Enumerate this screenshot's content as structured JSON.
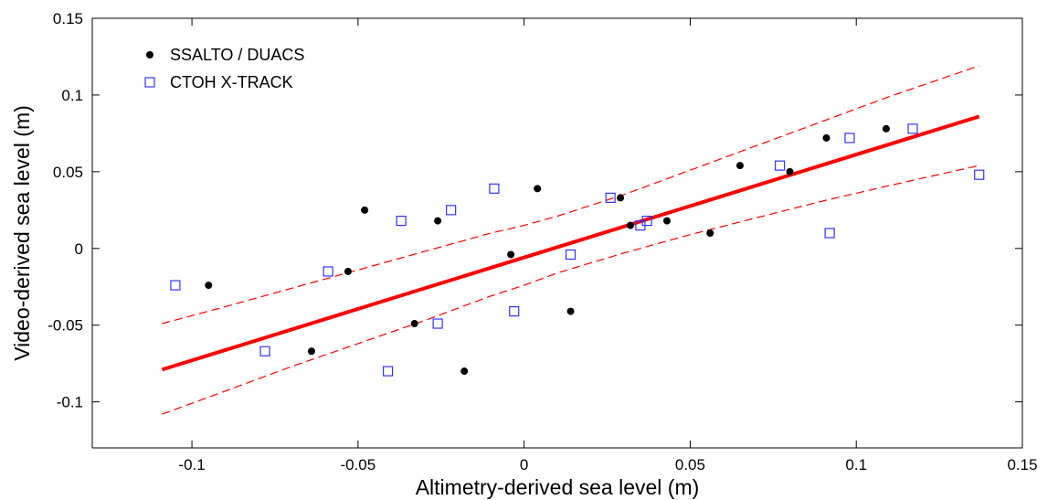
{
  "chart_data": {
    "type": "scatter",
    "title": "",
    "xlabel": "Altimetry-derived sea level (m)",
    "ylabel": "Video-derived sea level (m)",
    "xlim": [
      -0.13,
      0.15
    ],
    "ylim": [
      -0.13,
      0.15
    ],
    "xticks": [
      -0.1,
      -0.05,
      0,
      0.05,
      0.1,
      0.15
    ],
    "yticks": [
      -0.1,
      -0.05,
      0,
      0.05,
      0.1,
      0.15
    ],
    "xtick_labels": [
      "-0.1",
      "-0.05",
      "0",
      "0.05",
      "0.1",
      "0.15"
    ],
    "ytick_labels": [
      "-0.1",
      "-0.05",
      "0",
      "0.05",
      "0.1",
      "0.15"
    ],
    "grid": false,
    "legend_position": "top-left",
    "series": [
      {
        "name": "SSALTO / DUACS",
        "marker": "filled-circle",
        "color": "#000000",
        "x": [
          -0.095,
          -0.064,
          -0.053,
          -0.048,
          -0.033,
          -0.026,
          -0.018,
          -0.004,
          0.004,
          0.014,
          0.029,
          0.032,
          0.043,
          0.056,
          0.065,
          0.08,
          0.091,
          0.109
        ],
        "y": [
          -0.024,
          -0.067,
          -0.015,
          0.025,
          -0.049,
          0.018,
          -0.08,
          -0.004,
          0.039,
          -0.041,
          0.033,
          0.015,
          0.018,
          0.01,
          0.054,
          0.05,
          0.072,
          0.078
        ]
      },
      {
        "name": "CTOH X-TRACK",
        "marker": "open-square",
        "color": "#3333ff",
        "x": [
          -0.105,
          -0.078,
          -0.059,
          -0.041,
          -0.037,
          -0.026,
          -0.022,
          -0.009,
          -0.003,
          0.014,
          0.026,
          0.035,
          0.037,
          0.077,
          0.092,
          0.098,
          0.117,
          0.137
        ],
        "y": [
          -0.024,
          -0.067,
          -0.015,
          -0.08,
          0.018,
          -0.049,
          0.025,
          0.039,
          -0.041,
          -0.004,
          0.033,
          0.015,
          0.018,
          0.054,
          0.01,
          0.072,
          0.078,
          0.048
        ]
      }
    ],
    "fit_line": {
      "color": "#ff0000",
      "x": [
        -0.109,
        0.137
      ],
      "y": [
        -0.079,
        0.086
      ]
    },
    "confidence_band": {
      "color": "#ff0000",
      "style": "dashed",
      "x": [
        -0.109,
        -0.09,
        -0.07,
        -0.05,
        -0.03,
        -0.01,
        0.0,
        0.01,
        0.03,
        0.05,
        0.07,
        0.09,
        0.11,
        0.137
      ],
      "upper": [
        -0.049,
        -0.038,
        -0.026,
        -0.014,
        -0.002,
        0.01,
        0.015,
        0.021,
        0.035,
        0.051,
        0.067,
        0.083,
        0.099,
        0.119
      ],
      "lower": [
        -0.108,
        -0.093,
        -0.077,
        -0.062,
        -0.047,
        -0.031,
        -0.024,
        -0.016,
        -0.003,
        0.009,
        0.02,
        0.031,
        0.041,
        0.054
      ]
    }
  }
}
